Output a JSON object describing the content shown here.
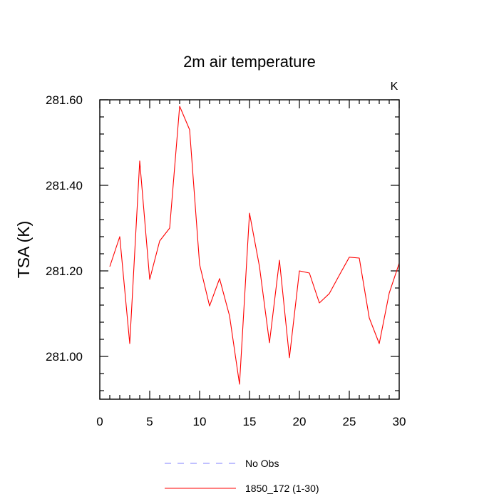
{
  "chart_data": {
    "type": "line",
    "title": "2m air temperature",
    "units_label": "K",
    "ylabel": "TSA  (K)",
    "xlabel": "",
    "xlim": [
      0,
      30
    ],
    "ylim": [
      280.9,
      281.6
    ],
    "x_ticks": [
      0,
      5,
      10,
      15,
      20,
      25,
      30
    ],
    "x_tick_labels": [
      "0",
      "5",
      "10",
      "15",
      "20",
      "25",
      "30"
    ],
    "y_ticks": [
      281.0,
      281.2,
      281.4,
      281.6
    ],
    "y_tick_labels": [
      "281.00",
      "281.20",
      "281.40",
      "281.60"
    ],
    "legend_position": "bottom-center",
    "series": [
      {
        "name": "No Obs",
        "color": "#8080ff",
        "style": "dashed",
        "x": [],
        "values": []
      },
      {
        "name": "1850_172 (1-30)",
        "color": "#ff0000",
        "style": "solid",
        "x": [
          1,
          2,
          3,
          4,
          5,
          6,
          7,
          8,
          9,
          10,
          11,
          12,
          13,
          14,
          15,
          16,
          17,
          18,
          19,
          20,
          21,
          22,
          23,
          24,
          25,
          26,
          27,
          28,
          29,
          30
        ],
        "values": [
          281.21,
          281.28,
          281.03,
          281.457,
          281.18,
          281.27,
          281.3,
          281.585,
          281.53,
          281.215,
          281.118,
          281.182,
          281.095,
          280.935,
          281.335,
          281.21,
          281.032,
          281.225,
          280.997,
          281.2,
          281.195,
          281.125,
          281.147,
          281.19,
          281.232,
          281.23,
          281.09,
          281.03,
          281.148,
          281.218
        ]
      }
    ]
  }
}
